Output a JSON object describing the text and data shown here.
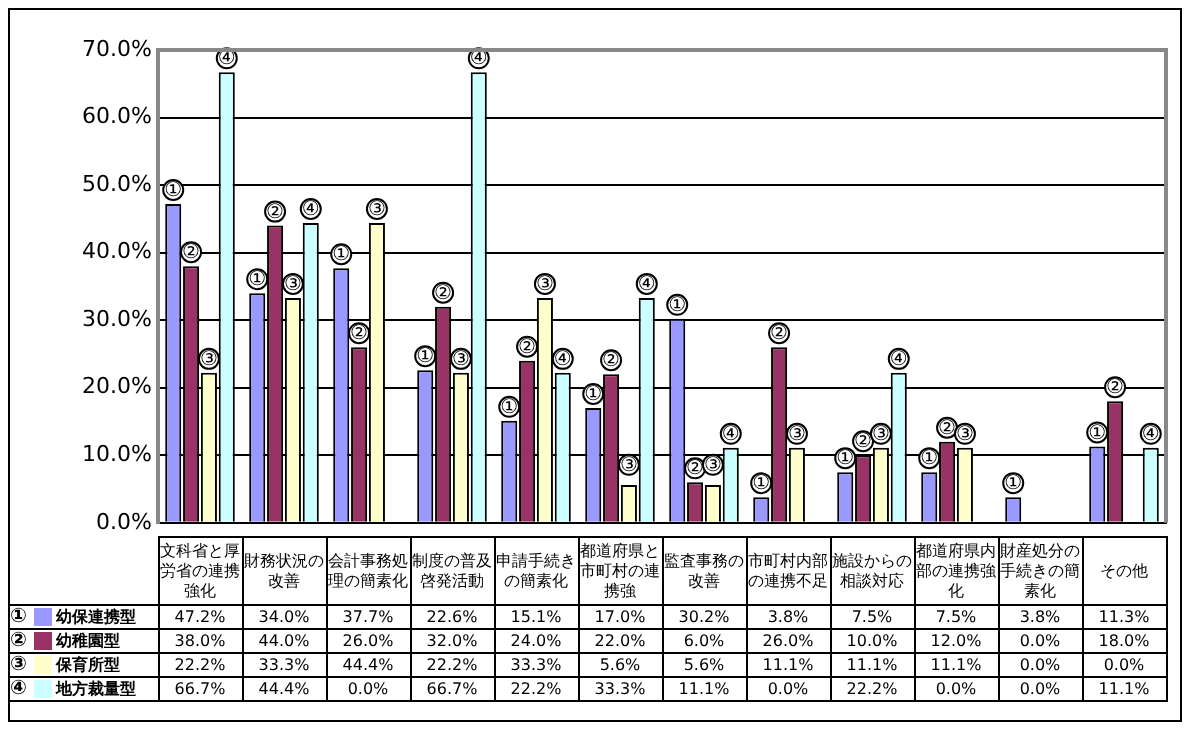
{
  "chart_data": {
    "type": "bar",
    "categories": [
      "文科省と厚労省の連携強化",
      "財務状況の改善",
      "会計事務処理の簡素化",
      "制度の普及啓発活動",
      "申請手続きの簡素化",
      "都道府県と市町村の連携強",
      "監査事務の改善",
      "市町村内部の連携不足",
      "施設からの相談対応",
      "都道府県内部の連携強化",
      "財産処分の手続きの簡素化",
      "その他"
    ],
    "series": [
      {
        "name": "幼保連携型",
        "color": "#9999ff",
        "values": [
          47.2,
          34.0,
          37.7,
          22.6,
          15.1,
          17.0,
          30.2,
          3.8,
          7.5,
          7.5,
          3.8,
          11.3
        ],
        "value_labels": [
          "47.2%",
          "34.0%",
          "37.7%",
          "22.6%",
          "15.1%",
          "17.0%",
          "30.2%",
          "3.8%",
          "7.5%",
          "7.5%",
          "3.8%",
          "11.3%"
        ]
      },
      {
        "name": "幼稚園型",
        "color": "#993366",
        "values": [
          38.0,
          44.0,
          26.0,
          32.0,
          24.0,
          22.0,
          6.0,
          26.0,
          10.0,
          12.0,
          0.0,
          18.0
        ],
        "value_labels": [
          "38.0%",
          "44.0%",
          "26.0%",
          "32.0%",
          "24.0%",
          "22.0%",
          "6.0%",
          "26.0%",
          "10.0%",
          "12.0%",
          "0.0%",
          "18.0%"
        ]
      },
      {
        "name": "保育所型",
        "color": "#ffffcc",
        "values": [
          22.2,
          33.3,
          44.4,
          22.2,
          33.3,
          5.6,
          5.6,
          11.1,
          11.1,
          11.1,
          0.0,
          0.0
        ],
        "value_labels": [
          "22.2%",
          "33.3%",
          "44.4%",
          "22.2%",
          "33.3%",
          "5.6%",
          "5.6%",
          "11.1%",
          "11.1%",
          "11.1%",
          "0.0%",
          "0.0%"
        ]
      },
      {
        "name": "地方裁量型",
        "color": "#ccffff",
        "values": [
          66.7,
          44.4,
          0.0,
          66.7,
          22.2,
          33.3,
          11.1,
          0.0,
          22.2,
          0.0,
          0.0,
          11.1
        ],
        "value_labels": [
          "66.7%",
          "44.4%",
          "0.0%",
          "66.7%",
          "22.2%",
          "33.3%",
          "11.1%",
          "0.0%",
          "22.2%",
          "0.0%",
          "0.0%",
          "11.1%"
        ]
      }
    ],
    "ylim": [
      0,
      70
    ],
    "yticks": [
      {
        "value": 0,
        "label": "0.0%"
      },
      {
        "value": 10,
        "label": "10.0%"
      },
      {
        "value": 20,
        "label": "20.0%"
      },
      {
        "value": 30,
        "label": "30.0%"
      },
      {
        "value": 40,
        "label": "40.0%"
      },
      {
        "value": 50,
        "label": "50.0%"
      },
      {
        "value": 60,
        "label": "60.0%"
      },
      {
        "value": 70,
        "label": "70.0%"
      }
    ],
    "grid": "y",
    "legend": "bottom left",
    "annotations": [
      "①",
      "②",
      "③",
      "④"
    ]
  }
}
